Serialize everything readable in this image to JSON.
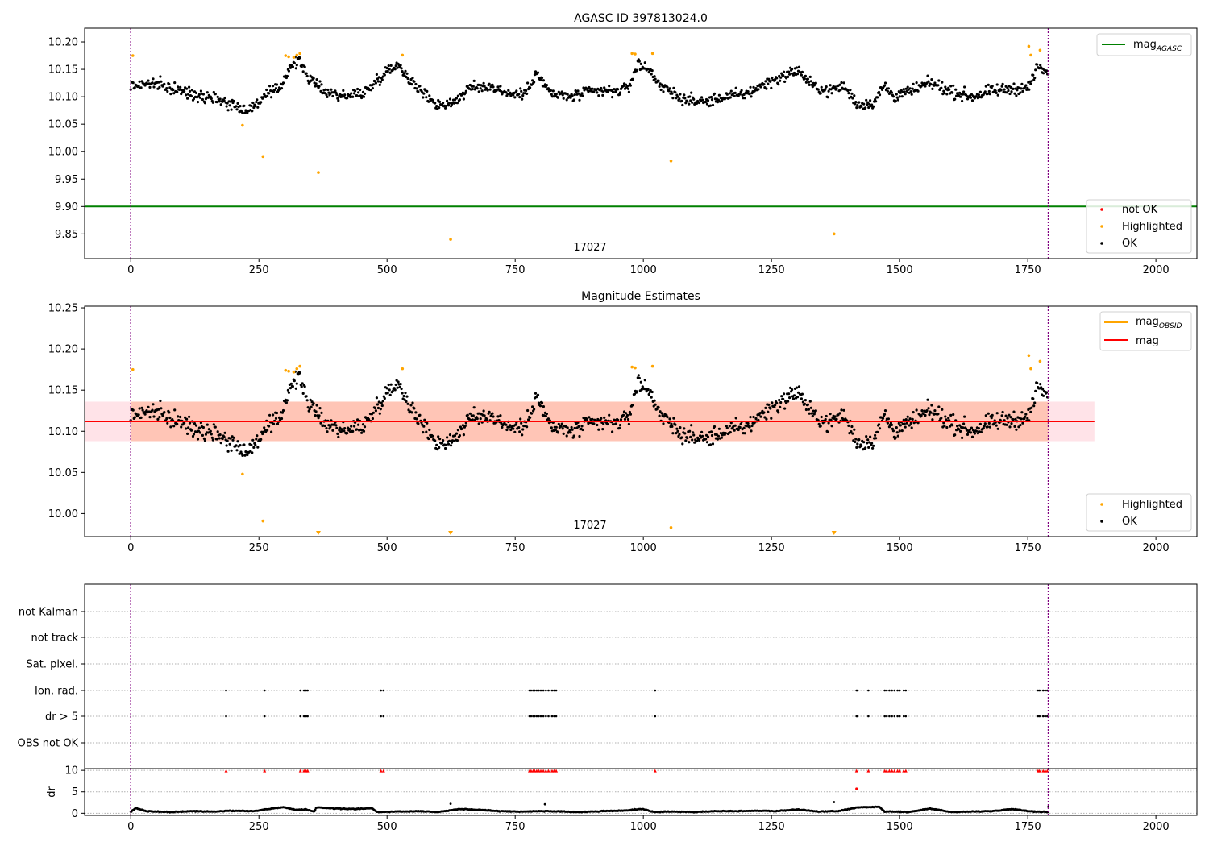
{
  "chart_data": [
    {
      "type": "scatter",
      "title": "AGASC ID 397813024.0",
      "xlim": [
        -90,
        2080
      ],
      "ylim": [
        9.805,
        10.225
      ],
      "xticks": [
        0,
        250,
        500,
        750,
        1000,
        1250,
        1500,
        1750,
        2000
      ],
      "xtick_labels": [
        "0",
        "250",
        "500",
        "750",
        "1000",
        "1250",
        "1500",
        "1750",
        "2000"
      ],
      "yticks": [
        9.85,
        9.9,
        9.95,
        10.0,
        10.05,
        10.1,
        10.15,
        10.2
      ],
      "ytick_labels": [
        "9.85",
        "9.90",
        "9.95",
        "10.00",
        "10.05",
        "10.10",
        "10.15",
        "10.20"
      ],
      "obs_bounds": [
        0,
        1790
      ],
      "obs_label": "17027",
      "obs_label_x": 895,
      "mag_agasc": 9.9,
      "ok_trend": [
        [
          0,
          10.12
        ],
        [
          40,
          10.125
        ],
        [
          80,
          10.115
        ],
        [
          120,
          10.105
        ],
        [
          160,
          10.1
        ],
        [
          200,
          10.085
        ],
        [
          230,
          10.075
        ],
        [
          260,
          10.1
        ],
        [
          290,
          10.115
        ],
        [
          310,
          10.155
        ],
        [
          330,
          10.165
        ],
        [
          350,
          10.13
        ],
        [
          380,
          10.11
        ],
        [
          420,
          10.1
        ],
        [
          460,
          10.11
        ],
        [
          490,
          10.14
        ],
        [
          520,
          10.16
        ],
        [
          560,
          10.115
        ],
        [
          600,
          10.085
        ],
        [
          630,
          10.09
        ],
        [
          660,
          10.115
        ],
        [
          700,
          10.12
        ],
        [
          740,
          10.105
        ],
        [
          770,
          10.105
        ],
        [
          790,
          10.145
        ],
        [
          820,
          10.105
        ],
        [
          860,
          10.1
        ],
        [
          900,
          10.11
        ],
        [
          940,
          10.11
        ],
        [
          970,
          10.115
        ],
        [
          990,
          10.16
        ],
        [
          1010,
          10.15
        ],
        [
          1040,
          10.115
        ],
        [
          1080,
          10.095
        ],
        [
          1120,
          10.09
        ],
        [
          1160,
          10.1
        ],
        [
          1200,
          10.105
        ],
        [
          1240,
          10.125
        ],
        [
          1280,
          10.14
        ],
        [
          1300,
          10.15
        ],
        [
          1330,
          10.12
        ],
        [
          1360,
          10.11
        ],
        [
          1390,
          10.12
        ],
        [
          1420,
          10.085
        ],
        [
          1450,
          10.09
        ],
        [
          1470,
          10.12
        ],
        [
          1490,
          10.1
        ],
        [
          1520,
          10.11
        ],
        [
          1560,
          10.125
        ],
        [
          1600,
          10.11
        ],
        [
          1640,
          10.1
        ],
        [
          1680,
          10.11
        ],
        [
          1720,
          10.115
        ],
        [
          1750,
          10.115
        ],
        [
          1770,
          10.155
        ],
        [
          1790,
          10.14
        ]
      ],
      "highlighted_points": [
        [
          4,
          10.175
        ],
        [
          218,
          10.048
        ],
        [
          258,
          9.991
        ],
        [
          302,
          10.175
        ],
        [
          308,
          10.173
        ],
        [
          318,
          10.172
        ],
        [
          324,
          10.176
        ],
        [
          330,
          10.179
        ],
        [
          366,
          9.962
        ],
        [
          530,
          10.176
        ],
        [
          624,
          9.84
        ],
        [
          978,
          10.179
        ],
        [
          984,
          10.178
        ],
        [
          1018,
          10.179
        ],
        [
          1054,
          9.983
        ],
        [
          1372,
          9.85
        ],
        [
          1752,
          10.192
        ],
        [
          1756,
          10.176
        ],
        [
          1774,
          10.185
        ]
      ],
      "legend_upper": [
        "mag",
        "AGASC"
      ],
      "legend_lower": [
        "not OK",
        "Highlighted",
        "OK"
      ],
      "colors": {
        "ok": "#000000",
        "highlighted": "#ffa500",
        "not_ok": "#ff0000",
        "mag_agasc": "#008000",
        "obs_bound": "#800080"
      }
    },
    {
      "type": "scatter",
      "title": "Magnitude Estimates",
      "xlim": [
        -90,
        2080
      ],
      "ylim": [
        9.972,
        10.252
      ],
      "xticks": [
        0,
        250,
        500,
        750,
        1000,
        1250,
        1500,
        1750,
        2000
      ],
      "xtick_labels": [
        "0",
        "250",
        "500",
        "750",
        "1000",
        "1250",
        "1500",
        "1750",
        "2000"
      ],
      "yticks": [
        10.0,
        10.05,
        10.1,
        10.15,
        10.2,
        10.25
      ],
      "ytick_labels": [
        "10.00",
        "10.05",
        "10.10",
        "10.15",
        "10.20",
        "10.25"
      ],
      "obs_label": "17027",
      "mag": 10.112,
      "mag_band": [
        10.088,
        10.136
      ],
      "mag_band_x": [
        -90,
        1880
      ],
      "obsid_band_x": [
        0,
        1790
      ],
      "mag_obsid": 10.112,
      "highlighted_points": [
        [
          4,
          10.175
        ],
        [
          218,
          10.048
        ],
        [
          258,
          9.991
        ],
        [
          302,
          10.174
        ],
        [
          308,
          10.173
        ],
        [
          318,
          10.172
        ],
        [
          324,
          10.176
        ],
        [
          330,
          10.179
        ],
        [
          530,
          10.176
        ],
        [
          978,
          10.178
        ],
        [
          984,
          10.177
        ],
        [
          1018,
          10.179
        ],
        [
          1054,
          9.983
        ],
        [
          1752,
          10.192
        ],
        [
          1756,
          10.176
        ],
        [
          1774,
          10.185
        ]
      ],
      "off_scale_markers_x": [
        366,
        624,
        1372
      ],
      "legend_upper": [
        "mag",
        "OBSID",
        "mag"
      ],
      "legend_lower": [
        "Highlighted",
        "OK"
      ],
      "colors": {
        "mag": "#ff0000",
        "mag_obsid": "#ffa500",
        "band_mag": "#ffc0cb",
        "band_obsid": "#ffa07a"
      }
    },
    {
      "type": "scatter",
      "title": "",
      "xlim": [
        -90,
        2080
      ],
      "categories": [
        "not Kalman",
        "not track",
        "Sat. pixel.",
        "Ion. rad.",
        "dr > 5",
        "OBS not OK"
      ],
      "ion_rad_x": [
        186,
        261,
        331,
        338,
        342,
        345,
        488,
        493,
        778,
        781,
        785,
        788,
        792,
        796,
        800,
        805,
        810,
        815,
        822,
        826,
        830,
        1023,
        1416,
        1418,
        1439,
        1471,
        1475,
        1480,
        1485,
        1490,
        1496,
        1500,
        1508,
        1512,
        1770,
        1773,
        1780,
        1784,
        1788
      ],
      "dr_gt5_x": [
        186,
        261,
        331,
        338,
        342,
        345,
        488,
        493,
        778,
        781,
        785,
        788,
        792,
        796,
        800,
        805,
        810,
        815,
        822,
        826,
        830,
        1023,
        1416,
        1418,
        1439,
        1471,
        1475,
        1480,
        1485,
        1490,
        1496,
        1500,
        1508,
        1512,
        1770,
        1773,
        1780,
        1784,
        1788
      ]
    },
    {
      "type": "scatter",
      "ylabel": "dr",
      "xlim": [
        -90,
        2080
      ],
      "ylim": [
        -0.5,
        10.4
      ],
      "yticks": [
        0,
        5,
        10
      ],
      "ytick_labels": [
        "0",
        "5",
        "10"
      ],
      "xticks": [
        0,
        250,
        500,
        750,
        1000,
        1250,
        1500,
        1750,
        2000
      ],
      "xtick_labels": [
        "0",
        "250",
        "500",
        "750",
        "1000",
        "1250",
        "1500",
        "1750",
        "2000"
      ],
      "dr_trend": [
        [
          0,
          0.3
        ],
        [
          10,
          1.2
        ],
        [
          30,
          0.5
        ],
        [
          80,
          0.3
        ],
        [
          120,
          0.5
        ],
        [
          160,
          0.4
        ],
        [
          200,
          0.6
        ],
        [
          240,
          0.5
        ],
        [
          280,
          1.2
        ],
        [
          300,
          1.4
        ],
        [
          320,
          0.8
        ],
        [
          340,
          0.9
        ],
        [
          358,
          0.4
        ],
        [
          362,
          1.4
        ],
        [
          400,
          1.1
        ],
        [
          440,
          1.0
        ],
        [
          470,
          1.2
        ],
        [
          480,
          0.3
        ],
        [
          520,
          0.4
        ],
        [
          560,
          0.5
        ],
        [
          600,
          0.3
        ],
        [
          640,
          1.0
        ],
        [
          680,
          0.8
        ],
        [
          720,
          0.5
        ],
        [
          760,
          0.4
        ],
        [
          800,
          0.5
        ],
        [
          840,
          0.4
        ],
        [
          880,
          0.3
        ],
        [
          920,
          0.5
        ],
        [
          960,
          0.6
        ],
        [
          1000,
          1.0
        ],
        [
          1020,
          0.3
        ],
        [
          1060,
          0.4
        ],
        [
          1100,
          0.3
        ],
        [
          1140,
          0.5
        ],
        [
          1180,
          0.5
        ],
        [
          1220,
          0.6
        ],
        [
          1260,
          0.5
        ],
        [
          1300,
          0.9
        ],
        [
          1340,
          0.4
        ],
        [
          1380,
          0.5
        ],
        [
          1420,
          1.4
        ],
        [
          1460,
          1.5
        ],
        [
          1470,
          0.4
        ],
        [
          1520,
          0.3
        ],
        [
          1560,
          1.1
        ],
        [
          1600,
          0.3
        ],
        [
          1640,
          0.4
        ],
        [
          1680,
          0.5
        ],
        [
          1720,
          1.0
        ],
        [
          1760,
          0.4
        ],
        [
          1790,
          0.3
        ]
      ],
      "dr_outliers": [
        [
          624,
          2.2
        ],
        [
          808,
          2.1
        ],
        [
          1372,
          2.6
        ],
        [
          1790,
          1.5
        ]
      ],
      "dr_clipped_x": [
        186,
        261,
        331,
        338,
        342,
        345,
        488,
        493,
        778,
        781,
        785,
        788,
        792,
        796,
        800,
        805,
        810,
        815,
        822,
        826,
        830,
        1023,
        1416,
        1439,
        1471,
        1475,
        1480,
        1485,
        1490,
        1496,
        1500,
        1508,
        1512,
        1770,
        1773,
        1780,
        1784,
        1788
      ],
      "dr_red_mid": [
        [
          1416,
          5.7
        ]
      ]
    }
  ]
}
